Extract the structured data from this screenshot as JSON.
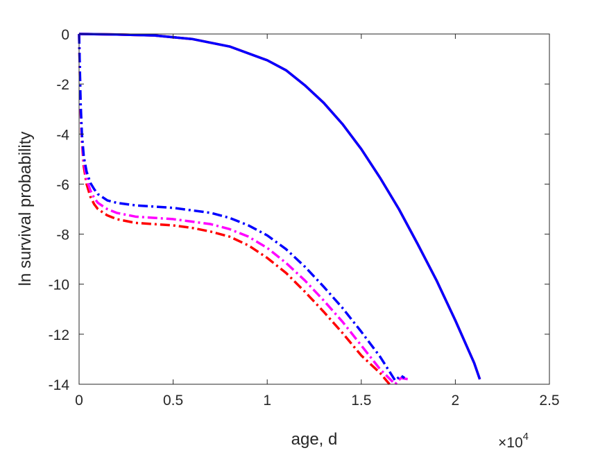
{
  "chart_data": {
    "type": "line",
    "xlabel": "age, d",
    "ylabel": "ln survival probability",
    "x_multiplier": "×10",
    "x_multiplier_exp": "4",
    "xlim": [
      0,
      25000
    ],
    "ylim": [
      -14,
      0
    ],
    "xticks": [
      0,
      5000,
      10000,
      15000,
      20000,
      25000
    ],
    "xtick_labels": [
      "0",
      "0.5",
      "1",
      "1.5",
      "2",
      "2.5"
    ],
    "yticks": [
      0,
      -2,
      -4,
      -6,
      -8,
      -10,
      -12,
      -14
    ],
    "ytick_labels": [
      "0",
      "-2",
      "-4",
      "-6",
      "-8",
      "-10",
      "-12",
      "-14"
    ],
    "grid": false,
    "legend": "none",
    "series": [
      {
        "color": "#ff00ff",
        "style": "solid",
        "x": [
          0,
          2000,
          4000,
          6000,
          8000,
          10000,
          11000,
          12000,
          13000,
          14000,
          15000,
          16000,
          17000,
          18000,
          19000,
          20000,
          21000,
          21300
        ],
        "y": [
          0,
          -0.02,
          -0.06,
          -0.2,
          -0.5,
          -1.05,
          -1.45,
          -2.05,
          -2.75,
          -3.6,
          -4.6,
          -5.75,
          -7.0,
          -8.4,
          -9.85,
          -11.45,
          -13.15,
          -13.8
        ]
      },
      {
        "color": "#ff0000",
        "style": "solid",
        "x": [
          0,
          2000,
          4000,
          6000,
          8000,
          10000,
          11000,
          12000,
          13000,
          14000,
          15000,
          16000,
          17000,
          18000,
          19000,
          20000,
          21000,
          21300
        ],
        "y": [
          0,
          -0.02,
          -0.06,
          -0.2,
          -0.5,
          -1.05,
          -1.45,
          -2.05,
          -2.75,
          -3.6,
          -4.6,
          -5.75,
          -7.0,
          -8.4,
          -9.85,
          -11.45,
          -13.15,
          -13.8
        ]
      },
      {
        "color": "#0000ff",
        "style": "solid",
        "x": [
          0,
          2000,
          4000,
          6000,
          8000,
          10000,
          11000,
          12000,
          13000,
          14000,
          15000,
          16000,
          17000,
          18000,
          19000,
          20000,
          21000,
          21300
        ],
        "y": [
          0,
          -0.02,
          -0.06,
          -0.2,
          -0.5,
          -1.05,
          -1.45,
          -2.05,
          -2.75,
          -3.6,
          -4.6,
          -5.75,
          -7.0,
          -8.4,
          -9.85,
          -11.45,
          -13.15,
          -13.8
        ]
      },
      {
        "color": "#ff0000",
        "style": "dashdot",
        "x": [
          0,
          80,
          150,
          250,
          400,
          600,
          800,
          1000,
          1500,
          2000,
          3000,
          4000,
          5000,
          6000,
          7000,
          8000,
          9000,
          10000,
          11000,
          12000,
          13000,
          14000,
          15000,
          16000,
          16500
        ],
        "y": [
          0,
          -3.0,
          -4.3,
          -5.3,
          -6.0,
          -6.5,
          -6.8,
          -7.0,
          -7.25,
          -7.4,
          -7.55,
          -7.6,
          -7.65,
          -7.75,
          -7.9,
          -8.1,
          -8.45,
          -8.95,
          -9.55,
          -10.3,
          -11.1,
          -11.95,
          -12.85,
          -13.55,
          -14.0
        ]
      },
      {
        "color": "#ff00ff",
        "style": "dashdot",
        "x": [
          0,
          80,
          150,
          250,
          400,
          600,
          800,
          1000,
          1500,
          2000,
          3000,
          4000,
          5000,
          6000,
          7000,
          8000,
          9000,
          10000,
          11000,
          12000,
          13000,
          14000,
          15000,
          16000,
          16800,
          17100,
          17500
        ],
        "y": [
          0,
          -2.9,
          -4.2,
          -5.1,
          -5.8,
          -6.25,
          -6.55,
          -6.75,
          -7.0,
          -7.15,
          -7.3,
          -7.35,
          -7.4,
          -7.5,
          -7.6,
          -7.8,
          -8.1,
          -8.55,
          -9.15,
          -9.85,
          -10.65,
          -11.5,
          -12.45,
          -13.4,
          -14.0,
          -13.75,
          -13.8
        ]
      },
      {
        "color": "#0000ff",
        "style": "dashdot",
        "x": [
          0,
          80,
          150,
          250,
          400,
          600,
          800,
          1000,
          1500,
          2000,
          3000,
          4000,
          5000,
          6000,
          7000,
          8000,
          9000,
          10000,
          11000,
          12000,
          13000,
          14000,
          15000,
          16000,
          16800,
          17100,
          17300
        ],
        "y": [
          0,
          -2.7,
          -4.0,
          -4.9,
          -5.5,
          -5.95,
          -6.2,
          -6.4,
          -6.65,
          -6.75,
          -6.85,
          -6.9,
          -6.95,
          -7.05,
          -7.15,
          -7.35,
          -7.65,
          -8.05,
          -8.6,
          -9.3,
          -10.1,
          -10.95,
          -11.9,
          -12.9,
          -13.85,
          -13.65,
          -13.75
        ]
      }
    ]
  }
}
